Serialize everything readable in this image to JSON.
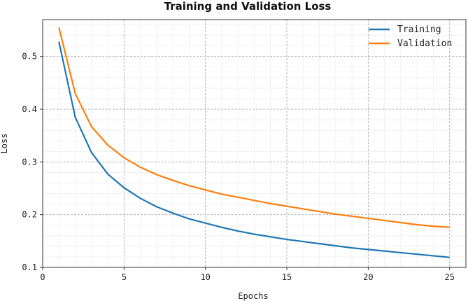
{
  "chart_data": {
    "type": "line",
    "title": "Training and Validation Loss",
    "xlabel": "Epochs",
    "ylabel": "Loss",
    "xlim": [
      0,
      26
    ],
    "ylim": [
      0.1,
      0.57
    ],
    "x_ticks": [
      "0",
      "5",
      "10",
      "15",
      "20",
      "25"
    ],
    "y_ticks": [
      "0.1",
      "0.2",
      "0.3",
      "0.4",
      "0.5"
    ],
    "grid": true,
    "legend_position": "top-right",
    "x": [
      1,
      2,
      3,
      4,
      5,
      6,
      7,
      8,
      9,
      10,
      11,
      12,
      13,
      14,
      15,
      16,
      17,
      18,
      19,
      20,
      21,
      22,
      23,
      24,
      25
    ],
    "series": [
      {
        "name": "Training",
        "color": "#1f77b4",
        "values": [
          0.528,
          0.385,
          0.318,
          0.277,
          0.251,
          0.231,
          0.215,
          0.203,
          0.192,
          0.184,
          0.176,
          0.169,
          0.163,
          0.158,
          0.153,
          0.149,
          0.145,
          0.141,
          0.137,
          0.134,
          0.131,
          0.128,
          0.125,
          0.122,
          0.119
        ]
      },
      {
        "name": "Validation",
        "color": "#ff7f0e",
        "values": [
          0.555,
          0.43,
          0.367,
          0.332,
          0.308,
          0.29,
          0.276,
          0.265,
          0.255,
          0.247,
          0.239,
          0.233,
          0.227,
          0.221,
          0.216,
          0.211,
          0.206,
          0.201,
          0.197,
          0.193,
          0.189,
          0.185,
          0.181,
          0.178,
          0.176
        ]
      }
    ]
  }
}
